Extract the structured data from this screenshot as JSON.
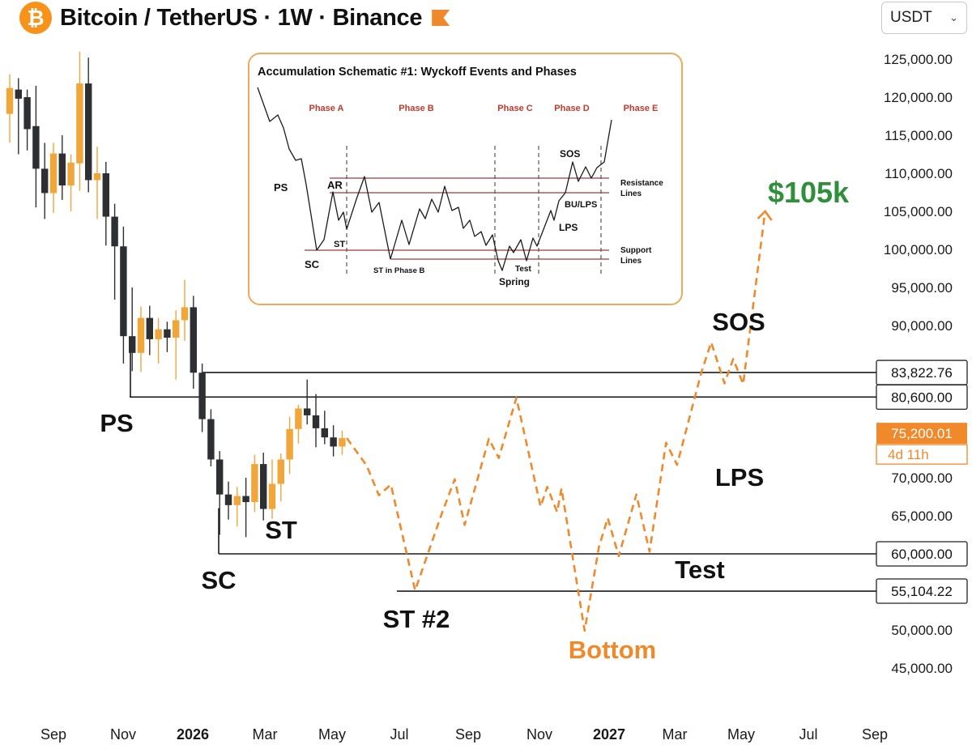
{
  "header": {
    "title": "Bitcoin / TetherUS · 1W · Binance",
    "currency": "USDT",
    "logo_icon": "bitcoin-icon",
    "exchange_icon": "exchange-flag-icon",
    "currency_icon": "chevron-down-icon"
  },
  "chart_data": {
    "type": "candlestick",
    "x_tick_labels": [
      "Sep",
      "Nov",
      "2026",
      "Mar",
      "May",
      "Jul",
      "Sep",
      "Nov",
      "2027",
      "Mar",
      "May",
      "Jul",
      "Sep"
    ],
    "bold_x_ticks": [
      "2026",
      "2027"
    ],
    "y_tick_labels": [
      "125,000.00",
      "120,000.00",
      "115,000.00",
      "110,000.00",
      "105,000.00",
      "100,000.00",
      "95,000.00",
      "90,000.00",
      "70,000.00",
      "65,000.00",
      "50,000.00",
      "45,000.00"
    ],
    "y_ticks": [
      125000,
      120000,
      115000,
      110000,
      105000,
      100000,
      95000,
      90000,
      70000,
      65000,
      50000,
      45000
    ],
    "ylim": [
      41500,
      128500
    ],
    "level_lines": [
      {
        "value": 83822.76,
        "label": "83,822.76"
      },
      {
        "value": 80600,
        "label": "80,600.00"
      },
      {
        "value": 60000,
        "label": "60,000.00"
      },
      {
        "value": 55104.22,
        "label": "55,104.22"
      }
    ],
    "current_price": {
      "value": 75200.01,
      "label": "75,200.01",
      "countdown": "4d 11h"
    },
    "colors": {
      "up": "#f0a638",
      "down": "#2e2f33",
      "projection": "#f0892b",
      "target": "#2f8f3a",
      "bottom": "#f0892b"
    },
    "candles": [
      {
        "o": 117800,
        "h": 123000,
        "l": 114000,
        "c": 121200
      },
      {
        "o": 121000,
        "h": 122500,
        "l": 112500,
        "c": 119800
      },
      {
        "o": 120000,
        "h": 121000,
        "l": 113000,
        "c": 115800
      },
      {
        "o": 116200,
        "h": 121500,
        "l": 105500,
        "c": 110600
      },
      {
        "o": 110600,
        "h": 114000,
        "l": 104000,
        "c": 107400
      },
      {
        "o": 107400,
        "h": 114000,
        "l": 104800,
        "c": 112600
      },
      {
        "o": 112600,
        "h": 115000,
        "l": 106500,
        "c": 108400
      },
      {
        "o": 108400,
        "h": 112500,
        "l": 105000,
        "c": 111400
      },
      {
        "o": 111300,
        "h": 126000,
        "l": 107700,
        "c": 121800
      },
      {
        "o": 121800,
        "h": 125200,
        "l": 107500,
        "c": 109100
      },
      {
        "o": 109100,
        "h": 113500,
        "l": 104000,
        "c": 110000
      },
      {
        "o": 110000,
        "h": 111500,
        "l": 100500,
        "c": 104300
      },
      {
        "o": 104300,
        "h": 106000,
        "l": 93400,
        "c": 100400
      },
      {
        "o": 100400,
        "h": 103000,
        "l": 85000,
        "c": 88600
      },
      {
        "o": 88600,
        "h": 95000,
        "l": 84000,
        "c": 86400
      },
      {
        "o": 86400,
        "h": 92500,
        "l": 83900,
        "c": 91000
      },
      {
        "o": 91000,
        "h": 92600,
        "l": 86100,
        "c": 88200
      },
      {
        "o": 88200,
        "h": 91000,
        "l": 85000,
        "c": 89500
      },
      {
        "o": 89500,
        "h": 90500,
        "l": 86500,
        "c": 88400
      },
      {
        "o": 88400,
        "h": 92000,
        "l": 82900,
        "c": 90700
      },
      {
        "o": 90700,
        "h": 96000,
        "l": 88000,
        "c": 92400
      },
      {
        "o": 92400,
        "h": 93900,
        "l": 81700,
        "c": 83800
      },
      {
        "o": 83800,
        "h": 85000,
        "l": 76000,
        "c": 77700
      },
      {
        "o": 77700,
        "h": 79000,
        "l": 71500,
        "c": 72400
      },
      {
        "o": 72400,
        "h": 73500,
        "l": 62500,
        "c": 67800
      },
      {
        "o": 67800,
        "h": 69500,
        "l": 64500,
        "c": 66400
      },
      {
        "o": 66400,
        "h": 68800,
        "l": 63600,
        "c": 67600
      },
      {
        "o": 67600,
        "h": 70000,
        "l": 62200,
        "c": 66800
      },
      {
        "o": 66800,
        "h": 73000,
        "l": 65500,
        "c": 71800
      },
      {
        "o": 71800,
        "h": 73300,
        "l": 64400,
        "c": 65900
      },
      {
        "o": 65900,
        "h": 72400,
        "l": 64600,
        "c": 69200
      },
      {
        "o": 69200,
        "h": 73200,
        "l": 66900,
        "c": 72400
      },
      {
        "o": 72400,
        "h": 78000,
        "l": 70500,
        "c": 76400
      },
      {
        "o": 76400,
        "h": 79600,
        "l": 74500,
        "c": 79100
      },
      {
        "o": 79100,
        "h": 82900,
        "l": 77000,
        "c": 78200
      },
      {
        "o": 78200,
        "h": 81000,
        "l": 74000,
        "c": 76500
      },
      {
        "o": 76500,
        "h": 78800,
        "l": 74400,
        "c": 75300
      },
      {
        "o": 75300,
        "h": 76900,
        "l": 72800,
        "c": 74100
      },
      {
        "o": 74100,
        "h": 76200,
        "l": 73000,
        "c": 75200
      }
    ],
    "projection_path": [
      {
        "x": "2026-05-21",
        "y": 75200
      },
      {
        "x": "2026-06-08",
        "y": 71600
      },
      {
        "x": "2026-06-19",
        "y": 67700
      },
      {
        "x": "2026-06-30",
        "y": 69100
      },
      {
        "x": "2026-07-22",
        "y": 55200
      },
      {
        "x": "2026-08-15",
        "y": 65200
      },
      {
        "x": "2026-08-27",
        "y": 69800
      },
      {
        "x": "2026-09-05",
        "y": 63800
      },
      {
        "x": "2026-09-27",
        "y": 75100
      },
      {
        "x": "2026-10-06",
        "y": 72600
      },
      {
        "x": "2026-10-22",
        "y": 80500
      },
      {
        "x": "2026-11-13",
        "y": 66200
      },
      {
        "x": "2026-11-19",
        "y": 68800
      },
      {
        "x": "2026-11-28",
        "y": 65500
      },
      {
        "x": "2026-12-02",
        "y": 68600
      },
      {
        "x": "2026-12-23",
        "y": 49900
      },
      {
        "x": "2027-01-05",
        "y": 60900
      },
      {
        "x": "2027-01-13",
        "y": 64700
      },
      {
        "x": "2027-01-23",
        "y": 59700
      },
      {
        "x": "2027-02-08",
        "y": 67800
      },
      {
        "x": "2027-02-20",
        "y": 60300
      },
      {
        "x": "2027-03-07",
        "y": 74600
      },
      {
        "x": "2027-03-17",
        "y": 71700
      },
      {
        "x": "2027-04-08",
        "y": 83800
      },
      {
        "x": "2027-04-17",
        "y": 87800
      },
      {
        "x": "2027-04-29",
        "y": 82400
      },
      {
        "x": "2027-05-07",
        "y": 85600
      },
      {
        "x": "2027-05-16",
        "y": 82300
      },
      {
        "x": "2027-06-05",
        "y": 105000
      }
    ],
    "annotations": [
      "PS",
      "SC",
      "ST",
      "ST #2",
      "Bottom",
      "Test",
      "LPS",
      "SOS",
      "$105k"
    ]
  },
  "inset": {
    "title": "Accumulation Schematic #1: Wyckoff Events and Phases",
    "phases": [
      "Phase A",
      "Phase B",
      "Phase C",
      "Phase D",
      "Phase E"
    ],
    "events": [
      "PS",
      "AR",
      "SC",
      "ST",
      "ST in Phase B",
      "Spring",
      "Test",
      "LPS",
      "SOS",
      "BU/LPS"
    ],
    "resistance_label": [
      "Resistance",
      "Lines"
    ],
    "support_label": [
      "Support",
      "Lines"
    ],
    "colors": {
      "border": "#f0a95a",
      "phase": "#c0392b",
      "lines": "#9b3a3a"
    }
  }
}
